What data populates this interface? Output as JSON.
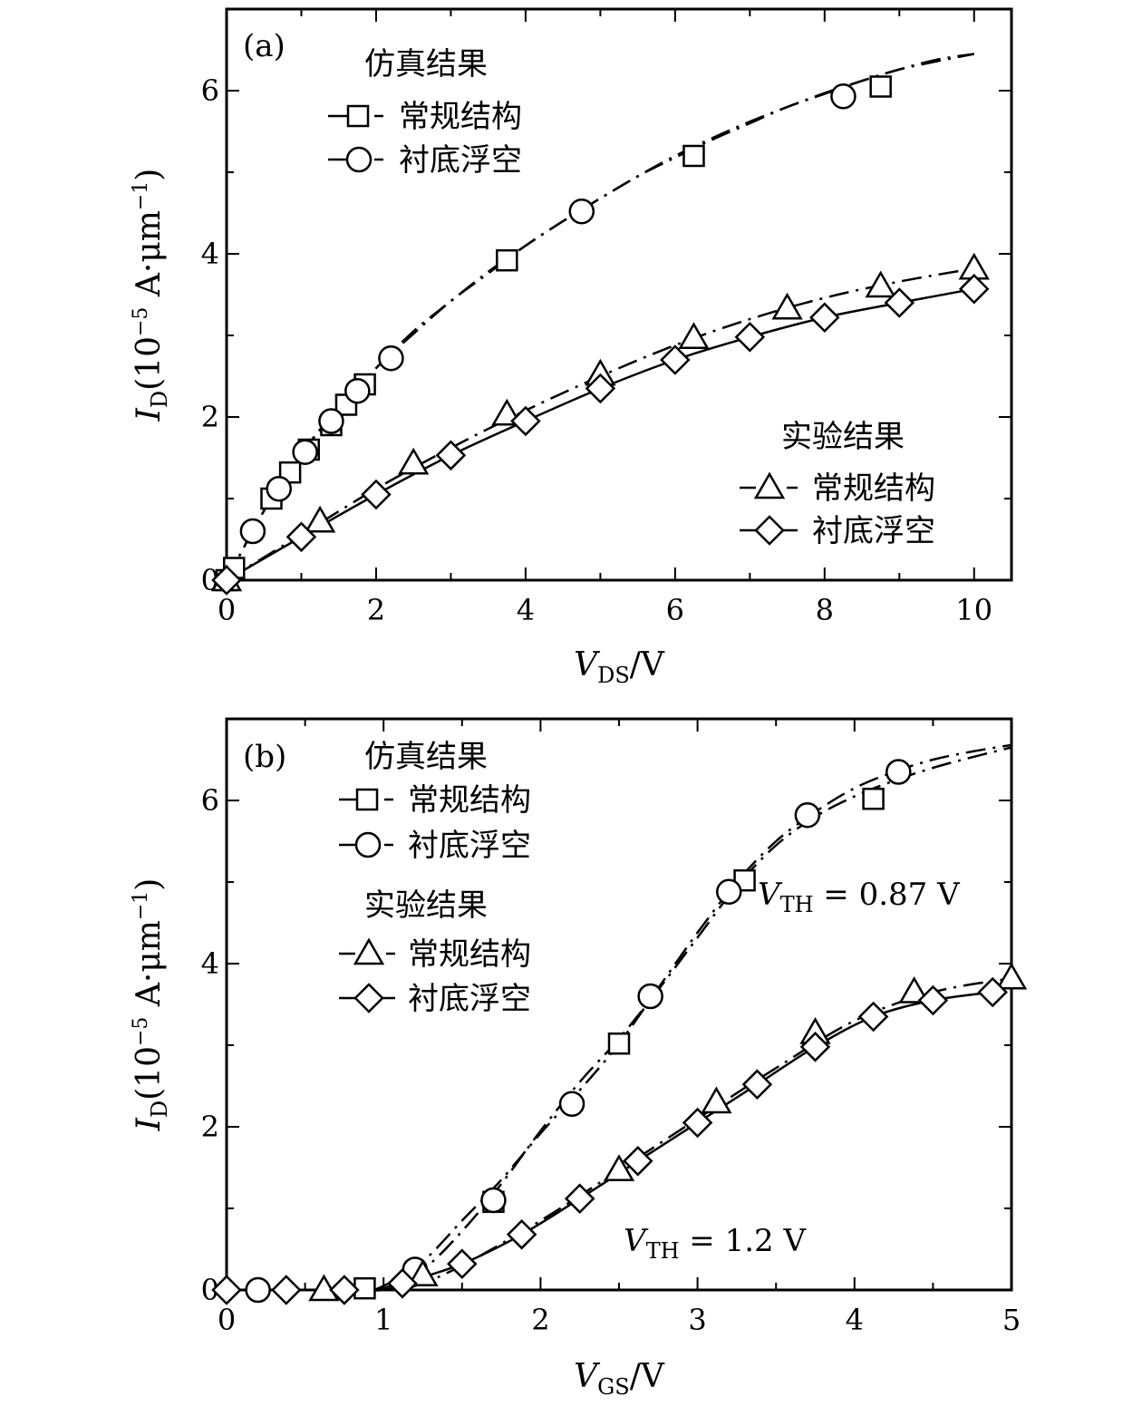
{
  "chart_data": [
    {
      "panel": "(a)",
      "type": "line",
      "x": {
        "symbol": "V",
        "sub": "DS",
        "unit": "/V",
        "lim": [
          0,
          10.5
        ],
        "ticks": [
          0,
          2,
          4,
          6,
          8,
          10
        ]
      },
      "y": {
        "symbol": "I",
        "sub": "D",
        "prefix": "(10",
        "exp": "−5",
        "unit": " A·μm",
        "unit_exp": "−1",
        "suffix": ")",
        "lim": [
          0,
          7
        ],
        "ticks": [
          0,
          2,
          4,
          6
        ]
      },
      "legend": [
        {
          "title": "仿真结果",
          "entries": [
            {
              "label": "常规结构",
              "series": 0
            },
            {
              "label": "衬底浮空",
              "series": 1
            }
          ]
        },
        {
          "title": "实验结果",
          "entries": [
            {
              "label": "常规结构",
              "series": 2
            },
            {
              "label": "衬底浮空",
              "series": 3
            }
          ]
        }
      ],
      "series": [
        {
          "name": "仿真结果 常规结构",
          "marker": "square",
          "line": "dashdot",
          "x": [
            0,
            0.1,
            0.6,
            0.85,
            1.1,
            1.4,
            1.6,
            1.85,
            3.75,
            6.25,
            8.75
          ],
          "y": [
            0,
            0.15,
            1.0,
            1.32,
            1.6,
            1.9,
            2.15,
            2.4,
            3.92,
            5.2,
            6.05
          ],
          "curve_x": [
            0,
            0.5,
            1,
            1.5,
            2,
            2.5,
            3,
            3.5,
            4,
            4.5,
            5,
            5.5,
            6,
            6.5,
            7,
            7.5,
            8,
            8.5,
            9,
            9.5,
            10
          ],
          "curve_y": [
            0,
            0.85,
            1.55,
            2.12,
            2.6,
            3.05,
            3.42,
            3.78,
            4.1,
            4.4,
            4.68,
            4.95,
            5.18,
            5.4,
            5.6,
            5.8,
            5.96,
            6.12,
            6.26,
            6.38,
            6.45
          ]
        },
        {
          "name": "仿真结果 衬底浮空",
          "marker": "circle",
          "line": "dashdot",
          "x": [
            0.35,
            0.7,
            1.05,
            1.4,
            1.75,
            2.2,
            4.75,
            8.25
          ],
          "y": [
            0.6,
            1.12,
            1.57,
            1.95,
            2.32,
            2.72,
            4.52,
            5.93
          ],
          "curve_x": [
            0,
            0.5,
            1,
            1.5,
            2,
            2.5,
            3,
            3.5,
            4,
            4.5,
            5,
            5.5,
            6,
            6.5,
            7,
            7.5,
            8,
            8.5,
            9,
            9.5,
            10
          ],
          "curve_y": [
            0,
            0.85,
            1.55,
            2.1,
            2.6,
            3.02,
            3.42,
            3.76,
            4.1,
            4.4,
            4.68,
            4.95,
            5.2,
            5.42,
            5.62,
            5.8,
            5.97,
            6.12,
            6.26,
            6.36,
            6.45
          ]
        },
        {
          "name": "实验结果 常规结构",
          "marker": "triangle",
          "line": "dashdot",
          "x": [
            0,
            1.25,
            2.5,
            3.75,
            5.0,
            6.25,
            7.5,
            8.75,
            10.0
          ],
          "y": [
            0,
            0.72,
            1.43,
            2.03,
            2.52,
            2.97,
            3.33,
            3.6,
            3.82
          ],
          "curve_x": [
            0,
            1,
            2,
            3,
            4,
            5,
            6,
            7,
            8,
            9,
            10
          ],
          "curve_y": [
            0,
            0.56,
            1.12,
            1.62,
            2.08,
            2.5,
            2.88,
            3.2,
            3.46,
            3.66,
            3.82
          ]
        },
        {
          "name": "实验结果 衬底浮空",
          "marker": "diamond",
          "line": "solid",
          "x": [
            0,
            1,
            2,
            3,
            4,
            5,
            6,
            7,
            8,
            9,
            10
          ],
          "y": [
            0,
            0.53,
            1.05,
            1.53,
            1.95,
            2.35,
            2.7,
            2.98,
            3.22,
            3.4,
            3.57
          ],
          "curve_x": [
            0,
            1,
            2,
            3,
            4,
            5,
            6,
            7,
            8,
            9,
            10
          ],
          "curve_y": [
            0,
            0.53,
            1.05,
            1.53,
            1.95,
            2.35,
            2.7,
            2.98,
            3.22,
            3.4,
            3.57
          ]
        }
      ],
      "annotations": []
    },
    {
      "panel": "(b)",
      "type": "line",
      "x": {
        "symbol": "V",
        "sub": "GS",
        "unit": "/V",
        "lim": [
          0,
          5
        ],
        "ticks": [
          0,
          1,
          2,
          3,
          4,
          5
        ]
      },
      "y": {
        "symbol": "I",
        "sub": "D",
        "prefix": "(10",
        "exp": "−5",
        "unit": " A·μm",
        "unit_exp": "−1",
        "suffix": ")",
        "lim": [
          0,
          7
        ],
        "ticks": [
          0,
          2,
          4,
          6
        ]
      },
      "legend": [
        {
          "title": "仿真结果",
          "entries": [
            {
              "label": "常规结构",
              "series": 0
            },
            {
              "label": "衬底浮空",
              "series": 1
            }
          ]
        },
        {
          "title": "实验结果",
          "entries": [
            {
              "label": "常规结构",
              "series": 2
            },
            {
              "label": "衬底浮空",
              "series": 3
            }
          ]
        }
      ],
      "series": [
        {
          "name": "仿真结果 常规结构",
          "marker": "square",
          "line": "dashdot",
          "x": [
            0.88,
            1.7,
            2.5,
            3.3,
            4.12
          ],
          "y": [
            0.02,
            1.08,
            3.02,
            5.02,
            6.02
          ],
          "curve_x": [
            0,
            0.5,
            0.87,
            1.0,
            1.25,
            1.5,
            1.75,
            2.0,
            2.25,
            2.5,
            2.75,
            3.0,
            3.25,
            3.5,
            3.75,
            4.0,
            4.25,
            4.5,
            4.75,
            5.0
          ],
          "curve_y": [
            0,
            0,
            0,
            0.02,
            0.25,
            0.72,
            1.3,
            1.95,
            2.55,
            3.08,
            3.68,
            4.32,
            4.95,
            5.45,
            5.8,
            6.05,
            6.24,
            6.4,
            6.53,
            6.65
          ]
        },
        {
          "name": "仿真结果 衬底浮空",
          "marker": "circle",
          "line": "dashdot",
          "x": [
            0.2,
            1.2,
            1.7,
            2.2,
            2.7,
            3.2,
            3.7,
            4.28
          ],
          "y": [
            0.0,
            0.25,
            1.1,
            2.28,
            3.6,
            4.88,
            5.82,
            6.35
          ],
          "curve_x": [
            0,
            0.5,
            0.87,
            1.0,
            1.25,
            1.5,
            1.75,
            2.0,
            2.25,
            2.5,
            2.75,
            3.0,
            3.25,
            3.5,
            3.75,
            4.0,
            4.25,
            4.5,
            4.75,
            5.0
          ],
          "curve_y": [
            0,
            0,
            0,
            0.05,
            0.35,
            0.85,
            1.35,
            1.92,
            2.45,
            3.02,
            3.7,
            4.38,
            5.0,
            5.5,
            5.86,
            6.15,
            6.35,
            6.5,
            6.6,
            6.68
          ]
        },
        {
          "name": "实验结果 常规结构",
          "marker": "triangle",
          "line": "dashdot",
          "x": [
            0.62,
            1.25,
            2.5,
            3.12,
            3.75,
            4.38,
            5.0
          ],
          "y": [
            0.0,
            0.18,
            1.47,
            2.3,
            3.15,
            3.65,
            3.82
          ],
          "curve_x": [
            0,
            0.5,
            1.0,
            1.2,
            1.5,
            2.0,
            2.5,
            3.0,
            3.5,
            4.0,
            4.5,
            5.0
          ],
          "curve_y": [
            0,
            0,
            0,
            0.05,
            0.3,
            0.85,
            1.47,
            2.1,
            2.72,
            3.3,
            3.65,
            3.82
          ]
        },
        {
          "name": "实验结果 衬底浮空",
          "marker": "diamond",
          "line": "solid",
          "x": [
            0,
            0.38,
            0.75,
            1.12,
            1.5,
            1.88,
            2.25,
            2.62,
            3.0,
            3.38,
            3.75,
            4.12,
            4.5,
            4.88
          ],
          "y": [
            0,
            0,
            0,
            0.08,
            0.32,
            0.68,
            1.12,
            1.58,
            2.05,
            2.52,
            2.98,
            3.35,
            3.55,
            3.65
          ],
          "curve_x": [
            0,
            0.38,
            0.75,
            1.0,
            1.12,
            1.5,
            1.88,
            2.25,
            2.62,
            3.0,
            3.38,
            3.75,
            4.12,
            4.5,
            4.88
          ],
          "curve_y": [
            0,
            0,
            0,
            0,
            0.08,
            0.32,
            0.68,
            1.12,
            1.58,
            2.05,
            2.52,
            2.98,
            3.35,
            3.55,
            3.65
          ]
        }
      ],
      "annotations": [
        {
          "symbol": "V",
          "sub": "TH",
          "text": " = 0.87 V",
          "at": [
            3.4,
            4.95
          ]
        },
        {
          "symbol": "V",
          "sub": "TH",
          "text": " = 1.2 V",
          "at": [
            2.55,
            0.55
          ]
        }
      ]
    }
  ]
}
